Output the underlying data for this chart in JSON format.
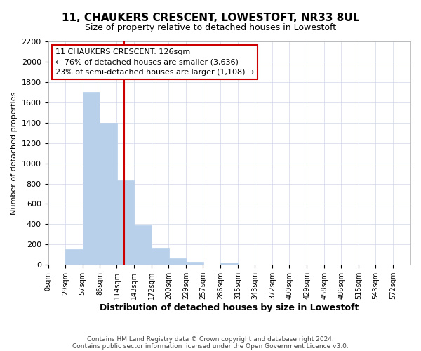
{
  "title_line1": "11, CHAUKERS CRESCENT, LOWESTOFT, NR33 8UL",
  "title_line2": "Size of property relative to detached houses in Lowestoft",
  "xlabel": "Distribution of detached houses by size in Lowestoft",
  "ylabel": "Number of detached properties",
  "bar_left_edges": [
    0,
    29,
    57,
    86,
    114,
    143,
    172,
    200,
    229,
    257,
    286,
    315,
    343,
    372,
    400,
    429,
    458,
    486,
    515,
    543
  ],
  "bar_heights": [
    0,
    155,
    1700,
    1400,
    830,
    390,
    165,
    65,
    30,
    0,
    25,
    0,
    0,
    0,
    0,
    0,
    0,
    0,
    0,
    0
  ],
  "bin_width": 29,
  "bar_color": "#b8d0ea",
  "bar_edgecolor": "#b8d0ea",
  "property_line_x": 126,
  "property_line_color": "#cc0000",
  "ylim": [
    0,
    2200
  ],
  "yticks": [
    0,
    200,
    400,
    600,
    800,
    1000,
    1200,
    1400,
    1600,
    1800,
    2000,
    2200
  ],
  "xtick_labels": [
    "0sqm",
    "29sqm",
    "57sqm",
    "86sqm",
    "114sqm",
    "143sqm",
    "172sqm",
    "200sqm",
    "229sqm",
    "257sqm",
    "286sqm",
    "315sqm",
    "343sqm",
    "372sqm",
    "400sqm",
    "429sqm",
    "458sqm",
    "486sqm",
    "515sqm",
    "543sqm",
    "572sqm"
  ],
  "xtick_positions": [
    0,
    29,
    57,
    86,
    114,
    143,
    172,
    200,
    229,
    257,
    286,
    315,
    343,
    372,
    400,
    429,
    458,
    486,
    515,
    543,
    572
  ],
  "xlim_max": 601,
  "annotation_title": "11 CHAUKERS CRESCENT: 126sqm",
  "annotation_line1": "← 76% of detached houses are smaller (3,636)",
  "annotation_line2": "23% of semi-detached houses are larger (1,108) →",
  "footer_line1": "Contains HM Land Registry data © Crown copyright and database right 2024.",
  "footer_line2": "Contains public sector information licensed under the Open Government Licence v3.0.",
  "background_color": "#ffffff",
  "grid_color": "#d0d8e8"
}
